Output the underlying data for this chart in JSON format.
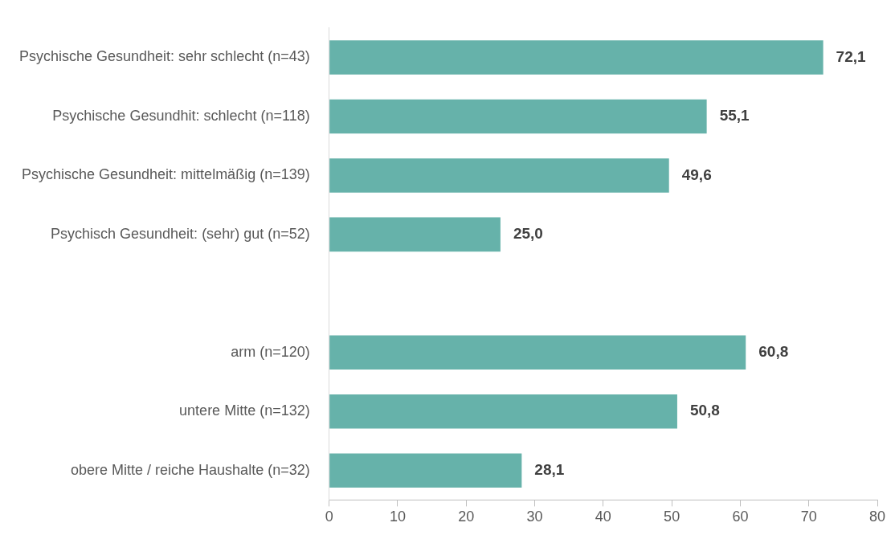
{
  "chart_data": {
    "type": "bar",
    "orientation": "horizontal",
    "categories": [
      "Psychische Gesundheit: sehr schlecht (n=43)",
      "Psychische Gesundhit: schlecht (n=118)",
      "Psychische Gesundheit: mittelmäßig (n=139)",
      "Psychisch Gesundheit: (sehr) gut (n=52)",
      null,
      "arm (n=120)",
      "untere Mitte (n=132)",
      "obere Mitte / reiche Haushalte (n=32)"
    ],
    "values": [
      72.1,
      55.1,
      49.6,
      25.0,
      null,
      60.8,
      50.8,
      28.1
    ],
    "value_labels": [
      "72,1",
      "55,1",
      "49,6",
      "25,0",
      null,
      "60,8",
      "50,8",
      "28,1"
    ],
    "color": "#66b2aa",
    "xlim": [
      0,
      80
    ],
    "xticks": [
      0,
      10,
      20,
      30,
      40,
      50,
      60,
      70,
      80
    ]
  }
}
